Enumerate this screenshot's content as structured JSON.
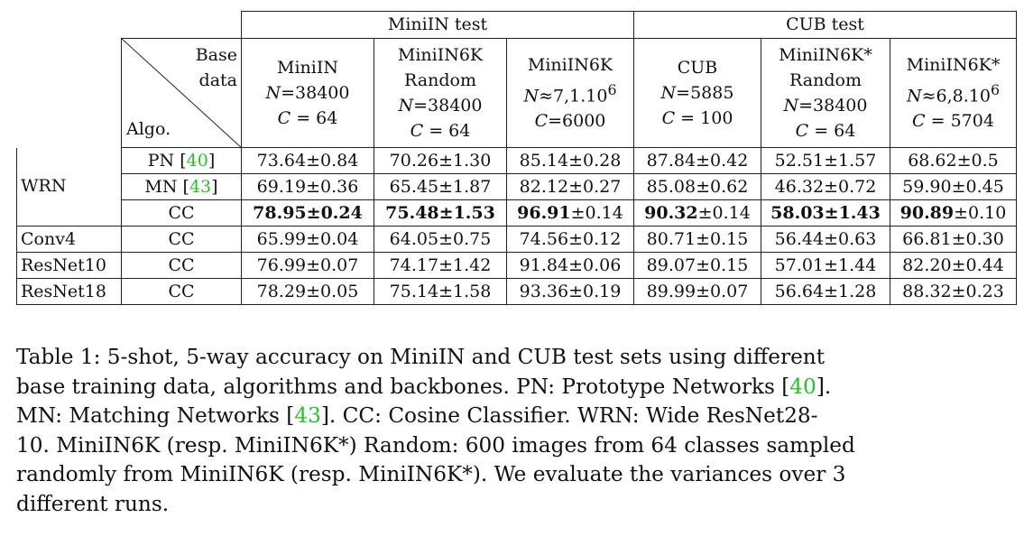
{
  "table": {
    "group_headers": {
      "minin": "MiniIN test",
      "cub": "CUB test"
    },
    "corner": {
      "base_line1": "Base",
      "base_line2": "data",
      "algo": "Algo."
    },
    "columns": [
      {
        "line1": "MiniIN",
        "n_label": "N",
        "n_value": "=38400",
        "c_label": "C",
        "c_value": " = 64"
      },
      {
        "line1": "MiniIN6K",
        "line2": "Random",
        "n_label": "N",
        "n_value": "=38400",
        "c_label": "C",
        "c_value": " = 64"
      },
      {
        "line1": "MiniIN6K",
        "n_label": "N",
        "n_value": "≈7,1.10",
        "n_sup": "6",
        "c_label": "C",
        "c_value": "=6000"
      },
      {
        "line1": "CUB",
        "n_label": "N",
        "n_value": "=5885",
        "c_label": "C",
        "c_value": " = 100"
      },
      {
        "line1": "MiniIN6K*",
        "line2": "Random",
        "n_label": "N",
        "n_value": "=38400",
        "c_label": "C",
        "c_value": " = 64"
      },
      {
        "line1": "MiniIN6K*",
        "n_label": "N",
        "n_value": "≈6,8.10",
        "n_sup": "6",
        "c_label": "C",
        "c_value": " = 5704"
      }
    ],
    "rows": [
      {
        "backbone": "WRN",
        "algo": "PN ",
        "cite": "40",
        "cells": [
          {
            "main": "73.64",
            "pm": "±",
            "err": "0.84"
          },
          {
            "main": "70.26",
            "pm": "±",
            "err": "1.30"
          },
          {
            "main": "85.14",
            "pm": "±",
            "err": "0.28"
          },
          {
            "main": "87.84",
            "pm": "±",
            "err": "0.42"
          },
          {
            "main": "52.51",
            "pm": "±",
            "err": "1.57"
          },
          {
            "main": "68.62",
            "pm": "±",
            "err": "0.5"
          }
        ]
      },
      {
        "backbone": "",
        "algo": "MN ",
        "cite": "43",
        "cells": [
          {
            "main": "69.19",
            "pm": "±",
            "err": "0.36"
          },
          {
            "main": "65.45",
            "pm": "±",
            "err": "1.87"
          },
          {
            "main": "82.12",
            "pm": "±",
            "err": "0.27"
          },
          {
            "main": "85.08",
            "pm": "±",
            "err": "0.62"
          },
          {
            "main": "46.32",
            "pm": "±",
            "err": "0.72"
          },
          {
            "main": "59.90",
            "pm": "±",
            "err": "0.45"
          }
        ]
      },
      {
        "backbone": "",
        "algo": "CC",
        "cite": "",
        "cells": [
          {
            "main": "78.95",
            "pm": "±",
            "err": "0.24"
          },
          {
            "main": "75.48",
            "pm": "±",
            "err": "1.53"
          },
          {
            "main": "96.91",
            "pm": "±",
            "err": "0.14"
          },
          {
            "main": "90.32",
            "pm": "±",
            "err": "0.14"
          },
          {
            "main": "58.03",
            "pm": "±",
            "err": "1.43"
          },
          {
            "main": "90.89",
            "pm": "±",
            "err": "0.10"
          }
        ]
      },
      {
        "backbone": "Conv4",
        "algo": "CC",
        "cite": "",
        "cells": [
          {
            "main": "65.99",
            "pm": "±",
            "err": "0.04"
          },
          {
            "main": "64.05",
            "pm": "±",
            "err": "0.75"
          },
          {
            "main": "74.56",
            "pm": "±",
            "err": "0.12"
          },
          {
            "main": "80.71",
            "pm": "±",
            "err": "0.15"
          },
          {
            "main": "56.44",
            "pm": "±",
            "err": "0.63"
          },
          {
            "main": "66.81",
            "pm": "±",
            "err": "0.30"
          }
        ]
      },
      {
        "backbone": "ResNet10",
        "algo": "CC",
        "cite": "",
        "cells": [
          {
            "main": "76.99",
            "pm": "±",
            "err": "0.07"
          },
          {
            "main": "74.17",
            "pm": "±",
            "err": "1.42"
          },
          {
            "main": "91.84",
            "pm": "±",
            "err": "0.06"
          },
          {
            "main": "89.07",
            "pm": "±",
            "err": "0.15"
          },
          {
            "main": "57.01",
            "pm": "±",
            "err": "1.44"
          },
          {
            "main": "82.20",
            "pm": "±",
            "err": "0.44"
          }
        ]
      },
      {
        "backbone": "ResNet18",
        "algo": "CC",
        "cite": "",
        "cells": [
          {
            "main": "78.29",
            "pm": "±",
            "err": "0.05"
          },
          {
            "main": "75.14",
            "pm": "±",
            "err": "1.58"
          },
          {
            "main": "93.36",
            "pm": "±",
            "err": "0.19"
          },
          {
            "main": "89.99",
            "pm": "±",
            "err": "0.07"
          },
          {
            "main": "56.64",
            "pm": "±",
            "err": "1.28"
          },
          {
            "main": "88.32",
            "pm": "±",
            "err": "0.23"
          }
        ]
      }
    ]
  },
  "caption": {
    "l1": "Table 1: 5-shot, 5-way accuracy on MiniIN and CUB test sets using different",
    "l2a": "base training data, algorithms and backbones. PN: Prototype Networks [",
    "l2cite": "40",
    "l2b": "].",
    "l3a": "MN: Matching Networks [",
    "l3cite": "43",
    "l3b": "]. CC: Cosine Classifier. WRN: Wide ResNet28-",
    "l4": "10. MiniIN6K (resp. MiniIN6K*) Random: 600 images from 64 classes sampled",
    "l5": "randomly from MiniIN6K (resp. MiniIN6K*). We evaluate the variances over 3",
    "l6": "different runs."
  }
}
